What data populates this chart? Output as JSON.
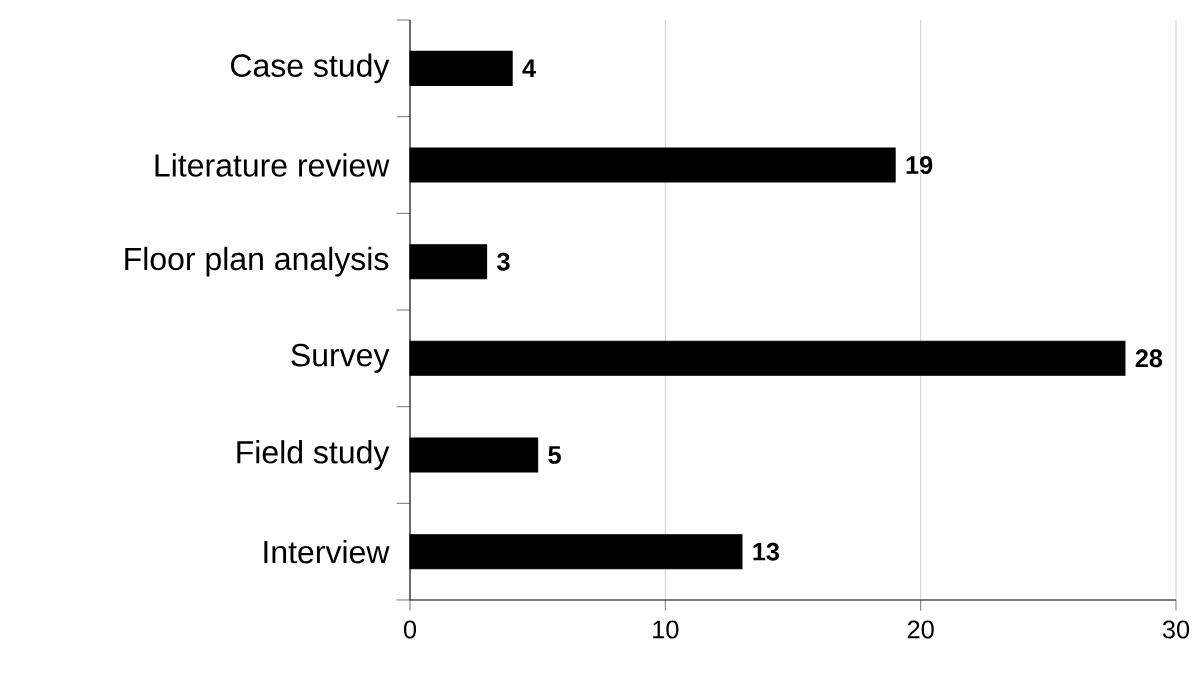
{
  "chart_data": {
    "type": "bar",
    "orientation": "horizontal",
    "categories": [
      "Case study",
      "Literature review",
      "Floor plan analysis",
      "Survey",
      "Field study",
      "Interview"
    ],
    "values": [
      4,
      19,
      3,
      28,
      5,
      13
    ],
    "color": "#000000",
    "xlim": [
      0,
      30
    ],
    "xticks": [
      0,
      10,
      20,
      30
    ],
    "grid": "x",
    "data_labels": true
  }
}
